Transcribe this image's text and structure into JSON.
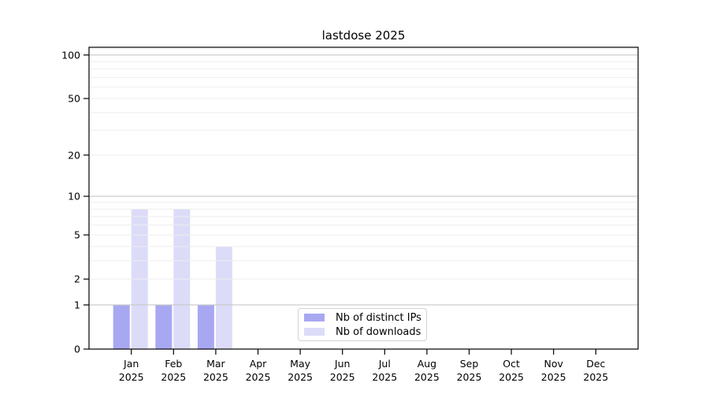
{
  "chart_data": {
    "type": "bar",
    "title": "lastdose 2025",
    "categories": [
      "Jan",
      "Feb",
      "Mar",
      "Apr",
      "May",
      "Jun",
      "Jul",
      "Aug",
      "Sep",
      "Oct",
      "Nov",
      "Dec"
    ],
    "x_tick_second_line": "2025",
    "series": [
      {
        "name": "Nb of distinct IPs",
        "color": "#a8a8f2",
        "values": [
          1,
          1,
          1,
          0,
          0,
          0,
          0,
          0,
          0,
          0,
          0,
          0
        ]
      },
      {
        "name": "Nb of downloads",
        "color": "#dcdcf9",
        "values": [
          8,
          8,
          4,
          0,
          0,
          0,
          0,
          0,
          0,
          0,
          0,
          0
        ]
      }
    ],
    "y_axis": {
      "scale": "log10(1+y)",
      "tick_values": [
        0,
        1,
        2,
        5,
        10,
        20,
        50,
        100
      ],
      "major_gridline_values": [
        1,
        10,
        100
      ],
      "minor_gridline_values": [
        2,
        3,
        4,
        5,
        6,
        7,
        8,
        9,
        20,
        30,
        40,
        50,
        60,
        70,
        80,
        90,
        110
      ],
      "top_value": 113
    },
    "legend_position": "bottom-center",
    "grid": true,
    "colors": {
      "major_grid": "#c8c8c8",
      "minor_grid": "#ededed",
      "axis": "#000000",
      "text": "#000000",
      "background": "#ffffff"
    }
  }
}
